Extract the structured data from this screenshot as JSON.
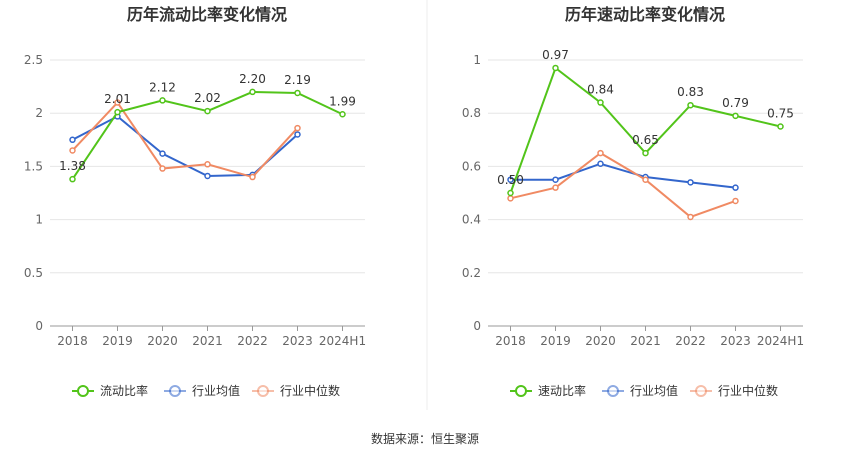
{
  "chart_data": [
    {
      "type": "line",
      "title": "历年流动比率变化情况",
      "categories": [
        "2018",
        "2019",
        "2020",
        "2021",
        "2022",
        "2023",
        "2024H1"
      ],
      "ylim": [
        0,
        2.5
      ],
      "yticks": [
        "0",
        "0.5",
        "1",
        "1.5",
        "2",
        "2.5"
      ],
      "ytick_values": [
        0,
        0.5,
        1,
        1.5,
        2,
        2.5
      ],
      "series": [
        {
          "name": "流动比率",
          "color": "#52c41a",
          "values": [
            1.38,
            2.01,
            2.12,
            2.02,
            2.2,
            2.19,
            1.99
          ],
          "labels": [
            "1.38",
            "2.01",
            "2.12",
            "2.02",
            "2.20",
            "2.19",
            "1.99"
          ]
        },
        {
          "name": "行业均值",
          "color": "#3366cc",
          "values": [
            1.75,
            1.97,
            1.62,
            1.41,
            1.42,
            1.8,
            null
          ]
        },
        {
          "name": "行业中位数",
          "color": "#f08a63",
          "values": [
            1.65,
            2.1,
            1.48,
            1.52,
            1.4,
            1.86,
            null
          ]
        }
      ]
    },
    {
      "type": "line",
      "title": "历年速动比率变化情况",
      "categories": [
        "2018",
        "2019",
        "2020",
        "2021",
        "2022",
        "2023",
        "2024H1"
      ],
      "ylim": [
        0,
        1
      ],
      "yticks": [
        "0",
        "0.2",
        "0.4",
        "0.6",
        "0.8",
        "1"
      ],
      "ytick_values": [
        0,
        0.2,
        0.4,
        0.6,
        0.8,
        1
      ],
      "series": [
        {
          "name": "速动比率",
          "color": "#52c41a",
          "values": [
            0.5,
            0.97,
            0.84,
            0.65,
            0.83,
            0.79,
            0.75
          ],
          "labels": [
            "0.50",
            "0.97",
            "0.84",
            "0.65",
            "0.83",
            "0.79",
            "0.75"
          ]
        },
        {
          "name": "行业均值",
          "color": "#3366cc",
          "values": [
            0.55,
            0.55,
            0.61,
            0.56,
            0.54,
            0.52,
            null
          ]
        },
        {
          "name": "行业中位数",
          "color": "#f08a63",
          "values": [
            0.48,
            0.52,
            0.65,
            0.55,
            0.41,
            0.47,
            null
          ]
        }
      ]
    }
  ],
  "source": "数据来源：恒生聚源"
}
